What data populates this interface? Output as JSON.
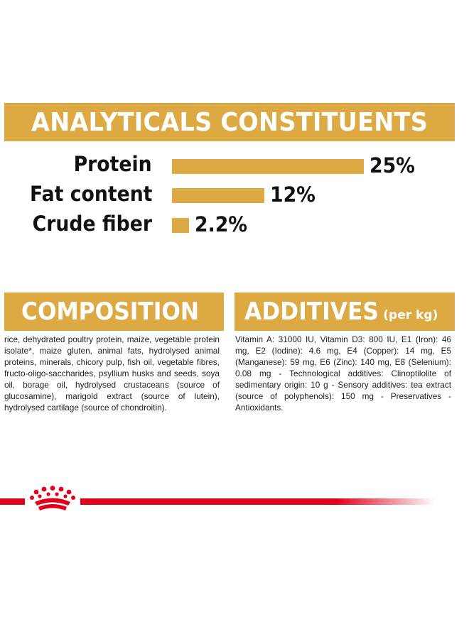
{
  "analytics": {
    "title": "ANALYTICALS CONSTITUENTS",
    "items": [
      {
        "label": "Protein",
        "value": "25%",
        "percent": 25
      },
      {
        "label": "Fat content",
        "value": "12%",
        "percent": 12
      },
      {
        "label": "Crude fiber",
        "value": "2.2%",
        "percent": 2.2
      }
    ]
  },
  "composition": {
    "title": "COMPOSITION",
    "text": "rice, dehydrated poultry protein, maize, vegetable protein isolate*, maize gluten, animal fats, hydrolysed animal proteins, minerals, chicory pulp, fish oil, vegetable fibres, fructo-oligo-saccharides, psyllium husks and seeds, soya oil, borage oil, hydrolysed crustaceans (source of glucosamine), marigold extract (source of lutein), hydrolysed cartilage (source of chondroitin)."
  },
  "additives": {
    "title": "ADDITIVES",
    "unit": "(per kg)",
    "text": "Vitamin A: 31000 IU, Vitamin D3: 800 IU, E1 (Iron): 46 mg, E2 (Iodine): 4.6 mg, E4 (Copper): 14 mg, E5 (Manganese): 59 mg, E6 (Zinc): 140 mg, E8 (Selenium): 0.08 mg - Technological additives: Clinoptilolite of sedimentary origin: 10 g - Sensory additives: tea extract (source of polyphenols): 150 mg - Preservatives - Antioxidants."
  },
  "colors": {
    "banner": "#dda942",
    "brand_red": "#e2001a"
  },
  "footer": {
    "logo_icon": "royal-canin-crown-icon"
  }
}
